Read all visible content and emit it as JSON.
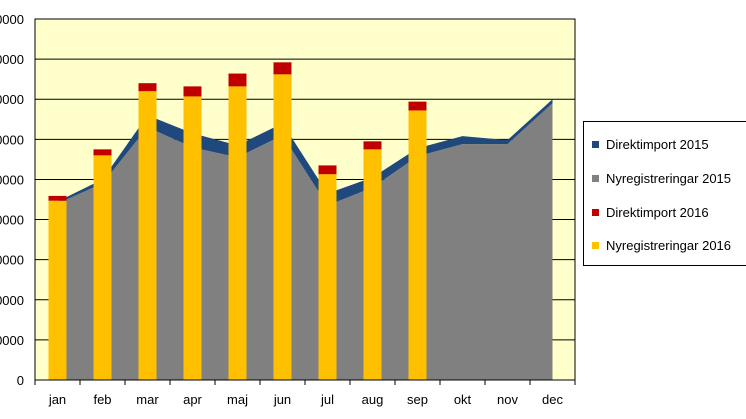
{
  "chart_data": {
    "type": "area",
    "title": "",
    "xlabel": "",
    "ylabel": "",
    "categories": [
      "jan",
      "feb",
      "mar",
      "apr",
      "maj",
      "jun",
      "jul",
      "aug",
      "sep",
      "okt",
      "nov",
      "dec"
    ],
    "y_tick_labels": [
      "0",
      "0000",
      "0000",
      "0000",
      "0000",
      "0000",
      "0000",
      "0000",
      "0000",
      "0000"
    ],
    "ylim": [
      0,
      9
    ],
    "grid": "horizontal",
    "legend_position": "right",
    "plot_background": "#FFFFCC",
    "series": [
      {
        "name": "Direktimport 2015",
        "chart": "stacked-area",
        "color": "#1F497D",
        "values": [
          0.05,
          0.1,
          0.3,
          0.35,
          0.3,
          0.3,
          0.3,
          0.25,
          0.2,
          0.2,
          0.1,
          0.1
        ]
      },
      {
        "name": "Nyregistreringar 2015",
        "chart": "stacked-area",
        "color": "#808080",
        "values": [
          4.4,
          4.9,
          6.3,
          5.8,
          5.55,
          6.1,
          4.35,
          4.8,
          5.58,
          5.88,
          5.88,
          6.9
        ]
      },
      {
        "name": "Direktimport 2016",
        "chart": "stacked-bar",
        "color": "#C00000",
        "values": [
          0.12,
          0.15,
          0.2,
          0.25,
          0.32,
          0.3,
          0.22,
          0.2,
          0.22,
          null,
          null,
          null
        ]
      },
      {
        "name": "Nyregistreringar 2016",
        "chart": "stacked-bar",
        "color": "#FFC000",
        "values": [
          4.47,
          5.6,
          7.2,
          7.07,
          7.32,
          7.62,
          5.13,
          5.75,
          6.72,
          null,
          null,
          null
        ]
      }
    ]
  }
}
